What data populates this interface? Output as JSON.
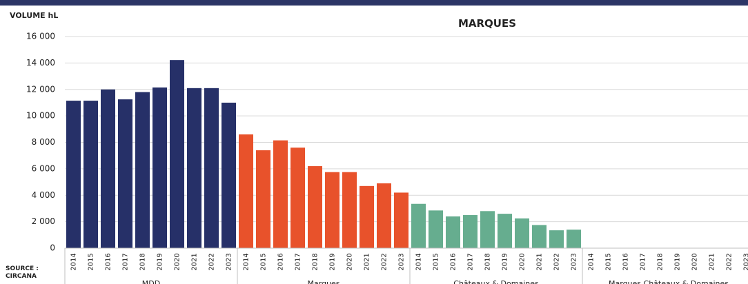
{
  "chart_data": {
    "type": "bar",
    "title": "MARQUES",
    "y_label": "VOLUME hL",
    "source": [
      "SOURCE :",
      "CIRCANA"
    ],
    "categories": [
      "2014",
      "2015",
      "2016",
      "2017",
      "2018",
      "2019",
      "2020",
      "2021",
      "2022",
      "2023"
    ],
    "groups": [
      {
        "name": "MDD",
        "color": "#263068",
        "values": [
          11150,
          11150,
          12000,
          11250,
          11800,
          12150,
          14220,
          12100,
          12100,
          11000
        ]
      },
      {
        "name": "Marques",
        "color": "#e8522b",
        "values": [
          8600,
          7400,
          8150,
          7600,
          6200,
          5750,
          5750,
          4700,
          4900,
          4200
        ]
      },
      {
        "name": "Châteaux & Domaines",
        "color": "#66ad8f",
        "values": [
          3350,
          2850,
          2400,
          2500,
          2800,
          2600,
          2250,
          1750,
          1350,
          1400
        ]
      },
      {
        "name": "Marques Châteaux & Domaines",
        "values": [
          null,
          null,
          null,
          null,
          null,
          null,
          null,
          null,
          null,
          null
        ]
      }
    ],
    "ylim": [
      0,
      16000
    ],
    "yticks": [
      0,
      {
        "value": 2000,
        "label": "2 000"
      },
      {
        "value": 4000,
        "label": "4 000"
      },
      {
        "value": 6000,
        "label": "6 000"
      },
      {
        "value": 8000,
        "label": "8 000"
      },
      {
        "value": 10000,
        "label": "10 000"
      },
      {
        "value": 12000,
        "label": "12 000"
      },
      {
        "value": 14000,
        "label": "14 000"
      },
      {
        "value": 16000,
        "label": "16 000"
      }
    ],
    "grid": true
  }
}
